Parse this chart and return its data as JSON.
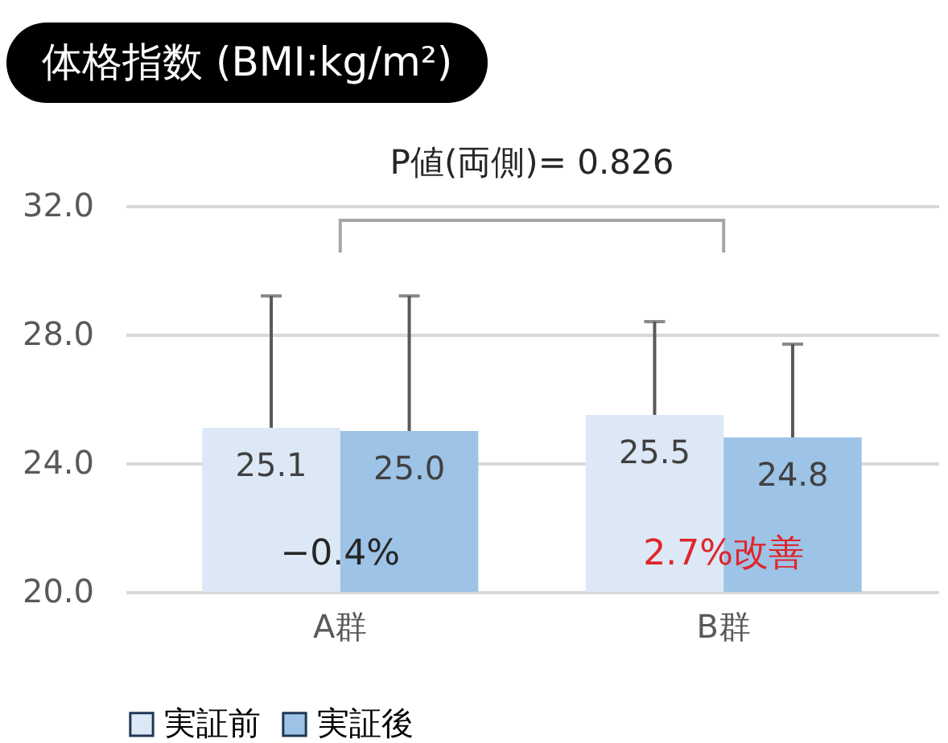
{
  "chart_data": {
    "type": "bar",
    "title": "体格指数 (BMI:kg/m²)",
    "categories": [
      "A群",
      "B群"
    ],
    "series": [
      {
        "name": "実証前",
        "color": "#dce8f5",
        "values": [
          25.1,
          25.5
        ],
        "errors": [
          [
            25.1,
            29.2
          ],
          [
            25.5,
            28.4
          ]
        ]
      },
      {
        "name": "実証後",
        "color": "#9dc3e6",
        "values": [
          25.0,
          24.8
        ],
        "errors": [
          [
            25.0,
            29.2
          ],
          [
            24.8,
            27.7
          ]
        ]
      }
    ],
    "ylim": [
      20,
      32
    ],
    "yticks": [
      {
        "value": 20,
        "label": "20.0"
      },
      {
        "value": 24,
        "label": "24.0"
      },
      {
        "value": 28,
        "label": "28.0"
      },
      {
        "value": 32,
        "label": "32.0"
      }
    ],
    "grid": "y",
    "legend": "bottom",
    "value_labels": [
      [
        "25.1",
        "25.5"
      ],
      [
        "25.0",
        "24.8"
      ]
    ],
    "annotations": [
      "P値(両側)= 0.826",
      {
        "text": "−0.4%",
        "x": "A群",
        "y": 21.2
      },
      {
        "text": "2.7%改善",
        "x": "B群",
        "y": 21.2
      }
    ]
  }
}
